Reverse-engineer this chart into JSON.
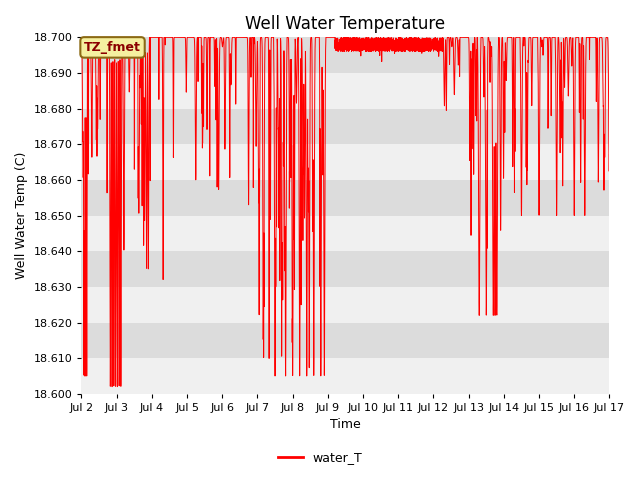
{
  "title": "Well Water Temperature",
  "xlabel": "Time",
  "ylabel": "Well Water Temp (C)",
  "ylim": [
    18.6,
    18.7
  ],
  "yticks": [
    18.6,
    18.61,
    18.62,
    18.63,
    18.64,
    18.65,
    18.66,
    18.67,
    18.68,
    18.69,
    18.7
  ],
  "line_color": "red",
  "line_label": "water_T",
  "tz_label": "TZ_fmet",
  "background_color": "#ffffff",
  "plot_bg_color": "#e8e8e8",
  "band_color_light": "#f0f0f0",
  "band_color_dark": "#dcdcdc",
  "grid_color": "#ffffff",
  "x_labels": [
    "Jul 2",
    "Jul 3",
    "Jul 4",
    "Jul 5",
    "Jul 6",
    "Jul 7",
    "Jul 8",
    "Jul 9",
    "Jul 10",
    "Jul 11",
    "Jul 12",
    "Jul 13",
    "Jul 14",
    "Jul 15",
    "Jul 16",
    "Jul 17"
  ],
  "x_tick_positions": [
    2,
    3,
    4,
    5,
    6,
    7,
    8,
    9,
    10,
    11,
    12,
    13,
    14,
    15,
    16,
    17
  ]
}
